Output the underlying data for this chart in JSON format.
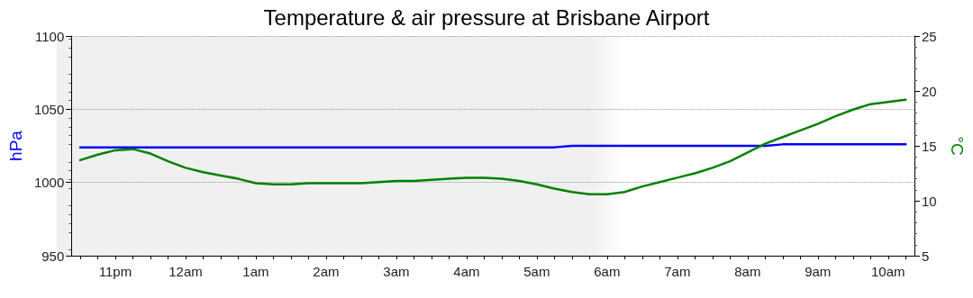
{
  "chart_data": {
    "type": "line",
    "title": "Temperature & air pressure at Brisbane Airport",
    "ylabel": "hPa",
    "y2label": "°C",
    "categories": [
      null,
      null,
      "11pm",
      null,
      null,
      null,
      "12am",
      null,
      null,
      null,
      "1am",
      null,
      null,
      null,
      "2am",
      null,
      null,
      null,
      "3am",
      null,
      null,
      null,
      "4am",
      null,
      null,
      null,
      "5am",
      null,
      null,
      null,
      "6am",
      null,
      null,
      null,
      "7am",
      null,
      null,
      null,
      "8am",
      null,
      null,
      null,
      "9am",
      null,
      null,
      null,
      "10am",
      null
    ],
    "ylim": [
      950,
      1100
    ],
    "yticks": [
      950,
      1000,
      1050,
      1100
    ],
    "y2lim": [
      5,
      25
    ],
    "y2ticks": [
      5,
      10,
      15,
      20,
      25
    ],
    "series": [
      {
        "color": "#0000ff",
        "axis": "y",
        "values": [
          1024,
          1024,
          1024,
          1024,
          1024,
          1024,
          1024,
          1024,
          1024,
          1024,
          1024,
          1024,
          1024,
          1024,
          1024,
          1024,
          1024,
          1024,
          1024,
          1024,
          1024,
          1024,
          1024,
          1024,
          1024,
          1024,
          1024,
          1024,
          1025,
          1025,
          1025,
          1025,
          1025,
          1025,
          1025,
          1025,
          1025,
          1025,
          1025,
          1025,
          1026,
          1026,
          1026,
          1026,
          1026,
          1026,
          1026,
          1026
        ]
      },
      {
        "color": "#008000",
        "axis": "y2",
        "values": [
          13.7,
          14.2,
          14.6,
          14.7,
          14.3,
          13.6,
          13.0,
          12.6,
          12.3,
          12.0,
          11.6,
          11.5,
          11.5,
          11.6,
          11.6,
          11.6,
          11.6,
          11.7,
          11.8,
          11.8,
          11.9,
          12.0,
          12.1,
          12.1,
          12.0,
          11.8,
          11.5,
          11.1,
          10.8,
          10.6,
          10.6,
          10.8,
          11.3,
          11.7,
          12.1,
          12.5,
          13.0,
          13.6,
          14.4,
          15.2,
          15.8,
          16.4,
          17.0,
          17.7,
          18.3,
          18.8,
          19.0,
          19.2
        ]
      }
    ],
    "grid": "y",
    "marker": "none",
    "line_style": "solid"
  }
}
